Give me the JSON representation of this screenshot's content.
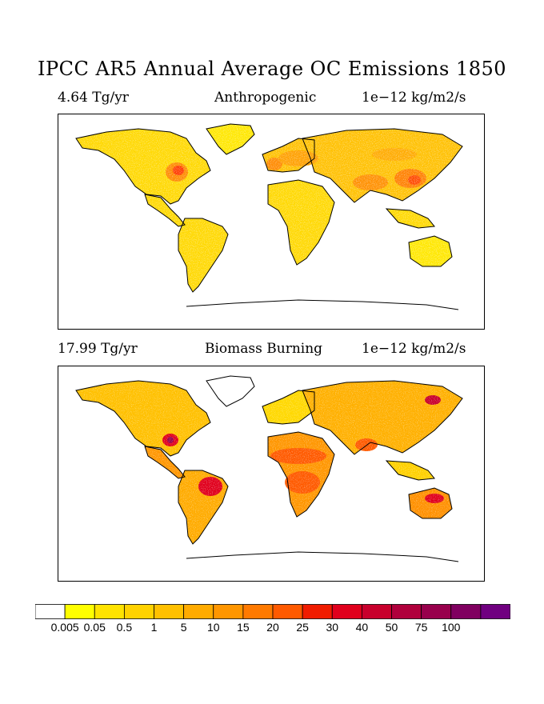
{
  "title": "IPCC AR5 Annual Average OC Emissions 1850",
  "panels": [
    {
      "total": "4.64 Tg/yr",
      "label": "Anthropogenic",
      "units": "1e−12 kg/m2/s"
    },
    {
      "total": "17.99 Tg/yr",
      "label": "Biomass Burning",
      "units": "1e−12 kg/m2/s"
    }
  ],
  "colorbar": {
    "colors": [
      "#ffffff",
      "#ffff00",
      "#ffe300",
      "#ffd200",
      "#ffc000",
      "#ffab00",
      "#ff9600",
      "#ff7a00",
      "#ff5a00",
      "#f01c00",
      "#e0001c",
      "#c8002c",
      "#b0003c",
      "#98004c",
      "#800060",
      "#700080"
    ],
    "labels": [
      "0.005",
      "0.05",
      "0.5",
      "1",
      "5",
      "10",
      "15",
      "20",
      "25",
      "30",
      "40",
      "50",
      "75",
      "100"
    ]
  }
}
